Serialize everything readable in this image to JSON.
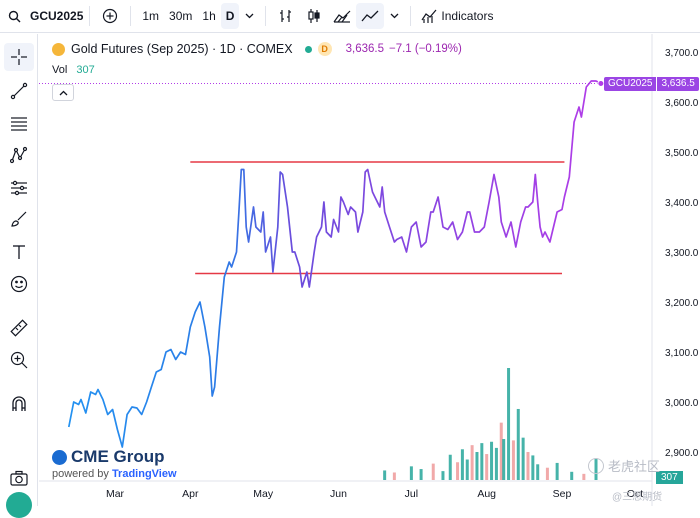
{
  "toolbar": {
    "symbol": "GCU2025",
    "timeframes": [
      "1m",
      "30m",
      "1h",
      "D"
    ],
    "active_timeframe": "D",
    "indicators_label": "Indicators"
  },
  "legend": {
    "title": "Gold Futures (Sep 2025) · 1D · COMEX",
    "badge": "D",
    "last": "3,636.5",
    "change": "−7.1 (−0.19%)",
    "vol_label": "Vol",
    "vol_value": "307"
  },
  "price_tag": {
    "symbol": "GCU2025",
    "value": "3,636.5"
  },
  "volume_tag": "307",
  "branding": {
    "title": "CME Group",
    "powered_by": "powered by",
    "tv": "TradingView"
  },
  "watermark": {
    "main": "老虎社区",
    "sub": "@三思期货"
  },
  "colors": {
    "line_start": "#2196f3",
    "line_end": "#b23ce8",
    "resistance": "#e53945",
    "volume_up": "#26a69a",
    "volume_down": "#ef9a9a"
  },
  "chart_data": {
    "type": "line",
    "title": "Gold Futures (Sep 2025) · 1D · COMEX",
    "y_ticks": [
      "3,700.0",
      "3,600.0",
      "3,500.0",
      "3,400.0",
      "3,300.0",
      "3,200.0",
      "3,100.0",
      "3,000.0",
      "2,900.0"
    ],
    "x_ticks": [
      "Mar",
      "Apr",
      "May",
      "Jun",
      "Jul",
      "Aug",
      "Sep",
      "Oct"
    ],
    "ylim": [
      2890,
      3710
    ],
    "horizontal_lines": [
      {
        "value": 3480,
        "from": "2025-04-01",
        "to": "2025-09-02"
      },
      {
        "value": 3257,
        "from": "2025-04-03",
        "to": "2025-09-01"
      }
    ],
    "series": [
      {
        "values": [
          [
            "2025-02-10",
            2950
          ],
          [
            "2025-02-12",
            3000
          ],
          [
            "2025-02-14",
            2995
          ],
          [
            "2025-02-15",
            3005
          ],
          [
            "2025-02-17",
            2978
          ],
          [
            "2025-02-19",
            3020
          ],
          [
            "2025-02-21",
            3015
          ],
          [
            "2025-02-22",
            3025
          ],
          [
            "2025-02-24",
            3005
          ],
          [
            "2025-02-26",
            2975
          ],
          [
            "2025-02-28",
            2985
          ],
          [
            "2025-03-02",
            2945
          ],
          [
            "2025-03-04",
            2910
          ],
          [
            "2025-03-06",
            2975
          ],
          [
            "2025-03-08",
            2990
          ],
          [
            "2025-03-10",
            2988
          ],
          [
            "2025-03-12",
            2975
          ],
          [
            "2025-03-14",
            3000
          ],
          [
            "2025-03-16",
            3030
          ],
          [
            "2025-03-18",
            3060
          ],
          [
            "2025-03-20",
            3065
          ],
          [
            "2025-03-22",
            3100
          ],
          [
            "2025-03-24",
            3105
          ],
          [
            "2025-03-26",
            3085
          ],
          [
            "2025-03-28",
            3100
          ],
          [
            "2025-03-30",
            3095
          ],
          [
            "2025-04-01",
            3150
          ],
          [
            "2025-04-03",
            3180
          ],
          [
            "2025-04-05",
            3200
          ],
          [
            "2025-04-07",
            3150
          ],
          [
            "2025-04-09",
            3090
          ],
          [
            "2025-04-10",
            3012
          ],
          [
            "2025-04-11",
            3030
          ],
          [
            "2025-04-13",
            3150
          ],
          [
            "2025-04-15",
            3250
          ],
          [
            "2025-04-17",
            3280
          ],
          [
            "2025-04-18",
            3270
          ],
          [
            "2025-04-20",
            3300
          ],
          [
            "2025-04-21",
            3380
          ],
          [
            "2025-04-22",
            3465
          ],
          [
            "2025-04-23",
            3465
          ],
          [
            "2025-04-24",
            3350
          ],
          [
            "2025-04-25",
            3320
          ],
          [
            "2025-04-27",
            3390
          ],
          [
            "2025-04-28",
            3350
          ],
          [
            "2025-04-30",
            3340
          ],
          [
            "2025-05-01",
            3380
          ],
          [
            "2025-05-02",
            3300
          ],
          [
            "2025-05-04",
            3330
          ],
          [
            "2025-05-05",
            3260
          ],
          [
            "2025-05-07",
            3350
          ],
          [
            "2025-05-08",
            3460
          ],
          [
            "2025-05-09",
            3455
          ],
          [
            "2025-05-11",
            3390
          ],
          [
            "2025-05-13",
            3300
          ],
          [
            "2025-05-14",
            3300
          ],
          [
            "2025-05-16",
            3270
          ],
          [
            "2025-05-17",
            3230
          ],
          [
            "2025-05-19",
            3260
          ],
          [
            "2025-05-20",
            3230
          ],
          [
            "2025-05-22",
            3300
          ],
          [
            "2025-05-23",
            3330
          ],
          [
            "2025-05-25",
            3350
          ],
          [
            "2025-05-26",
            3400
          ],
          [
            "2025-05-27",
            3340
          ],
          [
            "2025-05-29",
            3330
          ],
          [
            "2025-05-30",
            3365
          ],
          [
            "2025-06-01",
            3340
          ],
          [
            "2025-06-02",
            3410
          ],
          [
            "2025-06-03",
            3400
          ],
          [
            "2025-06-05",
            3375
          ],
          [
            "2025-06-06",
            3390
          ],
          [
            "2025-06-08",
            3380
          ],
          [
            "2025-06-09",
            3340
          ],
          [
            "2025-06-11",
            3380
          ],
          [
            "2025-06-12",
            3460
          ],
          [
            "2025-06-13",
            3465
          ],
          [
            "2025-06-15",
            3420
          ],
          [
            "2025-06-16",
            3410
          ],
          [
            "2025-06-18",
            3390
          ],
          [
            "2025-06-19",
            3430
          ],
          [
            "2025-06-20",
            3380
          ],
          [
            "2025-06-22",
            3350
          ],
          [
            "2025-06-24",
            3320
          ],
          [
            "2025-06-25",
            3325
          ],
          [
            "2025-06-27",
            3330
          ],
          [
            "2025-06-29",
            3300
          ],
          [
            "2025-07-01",
            3350
          ],
          [
            "2025-07-03",
            3360
          ],
          [
            "2025-07-05",
            3310
          ],
          [
            "2025-07-07",
            3320
          ],
          [
            "2025-07-09",
            3380
          ],
          [
            "2025-07-10",
            3380
          ],
          [
            "2025-07-12",
            3410
          ],
          [
            "2025-07-14",
            3350
          ],
          [
            "2025-07-16",
            3345
          ],
          [
            "2025-07-18",
            3360
          ],
          [
            "2025-07-20",
            3325
          ],
          [
            "2025-07-22",
            3340
          ],
          [
            "2025-07-24",
            3380
          ],
          [
            "2025-07-25",
            3380
          ],
          [
            "2025-07-27",
            3340
          ],
          [
            "2025-07-29",
            3340
          ],
          [
            "2025-07-31",
            3350
          ],
          [
            "2025-08-02",
            3400
          ],
          [
            "2025-08-04",
            3455
          ],
          [
            "2025-08-06",
            3410
          ],
          [
            "2025-08-07",
            3360
          ],
          [
            "2025-08-09",
            3330
          ],
          [
            "2025-08-11",
            3360
          ],
          [
            "2025-08-13",
            3310
          ],
          [
            "2025-08-15",
            3360
          ],
          [
            "2025-08-17",
            3390
          ],
          [
            "2025-08-18",
            3390
          ],
          [
            "2025-08-20",
            3400
          ],
          [
            "2025-08-21",
            3455
          ],
          [
            "2025-08-22",
            3400
          ],
          [
            "2025-08-23",
            3350
          ],
          [
            "2025-08-24",
            3330
          ],
          [
            "2025-08-25",
            3340
          ],
          [
            "2025-08-27",
            3320
          ],
          [
            "2025-08-28",
            3340
          ],
          [
            "2025-08-30",
            3380
          ],
          [
            "2025-09-01",
            3385
          ],
          [
            "2025-09-02",
            3410
          ],
          [
            "2025-09-04",
            3450
          ],
          [
            "2025-09-06",
            3560
          ],
          [
            "2025-09-08",
            3590
          ],
          [
            "2025-09-09",
            3570
          ],
          [
            "2025-09-11",
            3630
          ],
          [
            "2025-09-13",
            3642
          ],
          [
            "2025-09-15",
            3642
          ],
          [
            "2025-09-17",
            3637
          ]
        ]
      }
    ],
    "volume": [
      [
        "2025-06-20",
        140
      ],
      [
        "2025-06-24",
        110
      ],
      [
        "2025-07-01",
        200
      ],
      [
        "2025-07-05",
        160
      ],
      [
        "2025-07-10",
        240
      ],
      [
        "2025-07-14",
        130
      ],
      [
        "2025-07-17",
        370
      ],
      [
        "2025-07-20",
        260
      ],
      [
        "2025-07-22",
        450
      ],
      [
        "2025-07-24",
        300
      ],
      [
        "2025-07-26",
        510
      ],
      [
        "2025-07-28",
        410
      ],
      [
        "2025-07-30",
        540
      ],
      [
        "2025-08-01",
        380
      ],
      [
        "2025-08-03",
        560
      ],
      [
        "2025-08-05",
        470
      ],
      [
        "2025-08-07",
        840
      ],
      [
        "2025-08-08",
        600
      ],
      [
        "2025-08-10",
        1640
      ],
      [
        "2025-08-12",
        580
      ],
      [
        "2025-08-14",
        1040
      ],
      [
        "2025-08-16",
        620
      ],
      [
        "2025-08-18",
        410
      ],
      [
        "2025-08-20",
        360
      ],
      [
        "2025-08-22",
        230
      ],
      [
        "2025-08-26",
        180
      ],
      [
        "2025-08-30",
        250
      ],
      [
        "2025-09-05",
        120
      ],
      [
        "2025-09-10",
        90
      ],
      [
        "2025-09-15",
        307
      ]
    ]
  }
}
